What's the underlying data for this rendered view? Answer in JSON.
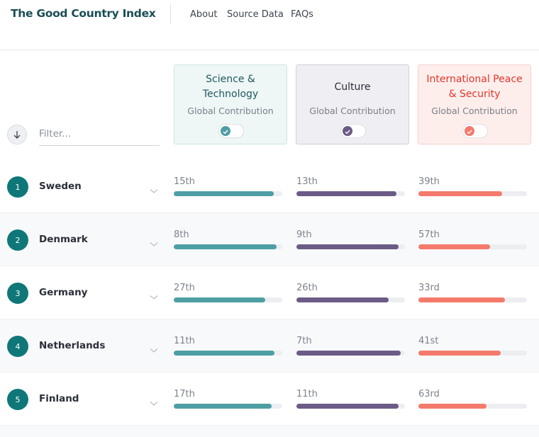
{
  "header": {
    "title": "The Good Country Index",
    "nav": [
      "About",
      "Source Data",
      "FAQs"
    ]
  },
  "filter_placeholder": "Filter...",
  "columns": [
    {
      "title": "Science & Technology",
      "subtitle": "Global Contribution",
      "color": "#4e9fa4",
      "title_color": "#1f5960",
      "bg": "#eef6f6",
      "border": "#cfe5e5"
    },
    {
      "title": "Culture",
      "subtitle": "Global Contribution",
      "color": "#6c5b86",
      "title_color": "#2c2c38",
      "bg": "#efeef3",
      "border": "#d2cfdb"
    },
    {
      "title": "International Peace & Security",
      "subtitle": "Global Contribution",
      "color": "#f47a6c",
      "title_color": "#e2362c",
      "bg": "#fdeeec",
      "border": "#f6d0ca"
    }
  ],
  "rows": [
    {
      "rank": 1,
      "country": "Sweden",
      "cells": [
        {
          "rank_label": "15th",
          "score": 0.92
        },
        {
          "rank_label": "13th",
          "score": 0.92
        },
        {
          "rank_label": "39th",
          "score": 0.77
        }
      ]
    },
    {
      "rank": 2,
      "country": "Denmark",
      "cells": [
        {
          "rank_label": "8th",
          "score": 0.95
        },
        {
          "rank_label": "9th",
          "score": 0.94
        },
        {
          "rank_label": "57th",
          "score": 0.66
        }
      ]
    },
    {
      "rank": 3,
      "country": "Germany",
      "cells": [
        {
          "rank_label": "27th",
          "score": 0.84
        },
        {
          "rank_label": "26th",
          "score": 0.85
        },
        {
          "rank_label": "33rd",
          "score": 0.8
        }
      ]
    },
    {
      "rank": 4,
      "country": "Netherlands",
      "cells": [
        {
          "rank_label": "11th",
          "score": 0.93
        },
        {
          "rank_label": "7th",
          "score": 0.96
        },
        {
          "rank_label": "41st",
          "score": 0.76
        }
      ]
    },
    {
      "rank": 5,
      "country": "Finland",
      "cells": [
        {
          "rank_label": "17th",
          "score": 0.9
        },
        {
          "rank_label": "11th",
          "score": 0.94
        },
        {
          "rank_label": "63rd",
          "score": 0.63
        }
      ]
    }
  ]
}
